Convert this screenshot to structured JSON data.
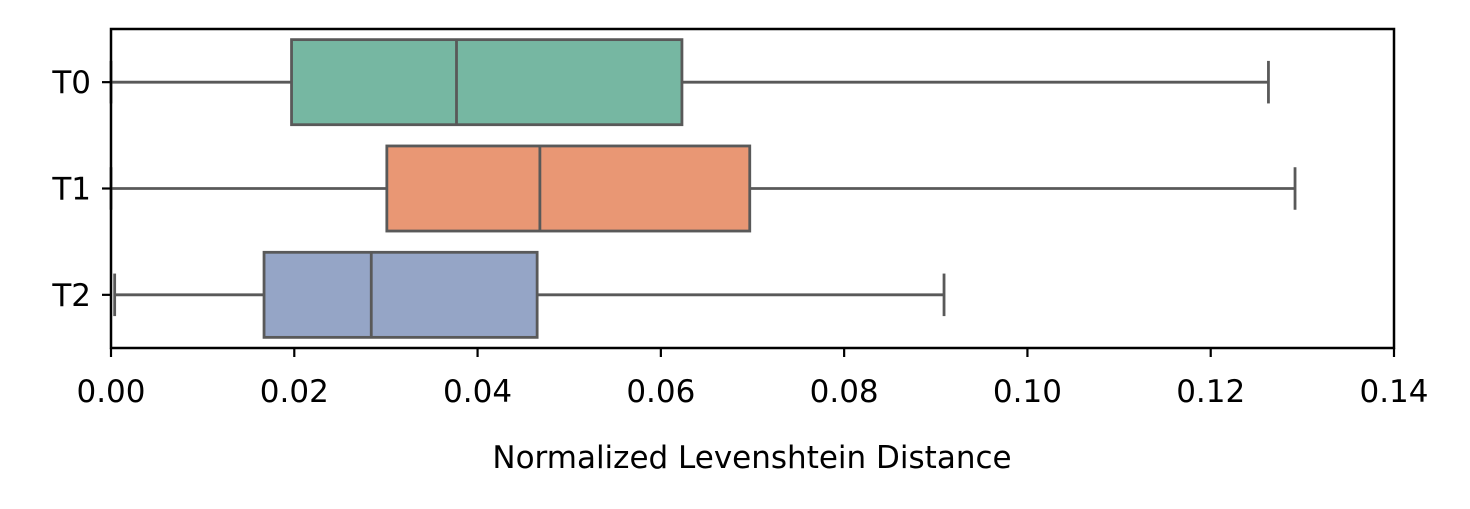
{
  "chart_data": {
    "type": "boxplot",
    "orientation": "horizontal",
    "title": "",
    "xlabel": "Normalized Levenshtein Distance",
    "ylabel": "",
    "xlim": [
      0.0,
      0.14
    ],
    "x_ticks": [
      0.0,
      0.02,
      0.04,
      0.06,
      0.08,
      0.1,
      0.12,
      0.14
    ],
    "x_tick_labels": [
      "0.00",
      "0.02",
      "0.04",
      "0.06",
      "0.08",
      "0.10",
      "0.12",
      "0.14"
    ],
    "categories": [
      "T0",
      "T1",
      "T2"
    ],
    "grid": false,
    "series": [
      {
        "category": "T0",
        "whisker_low": 0.0,
        "q1": 0.0197,
        "median": 0.0377,
        "q3": 0.0623,
        "whisker_high": 0.1263,
        "color": "#76b7a2"
      },
      {
        "category": "T1",
        "whisker_low": 0.0,
        "q1": 0.0301,
        "median": 0.0468,
        "q3": 0.0697,
        "whisker_high": 0.1292,
        "color": "#e99774"
      },
      {
        "category": "T2",
        "whisker_low": 0.0004,
        "q1": 0.0167,
        "median": 0.0284,
        "q3": 0.0465,
        "whisker_high": 0.0909,
        "color": "#95a5c6"
      }
    ],
    "line_color": "#595959"
  }
}
